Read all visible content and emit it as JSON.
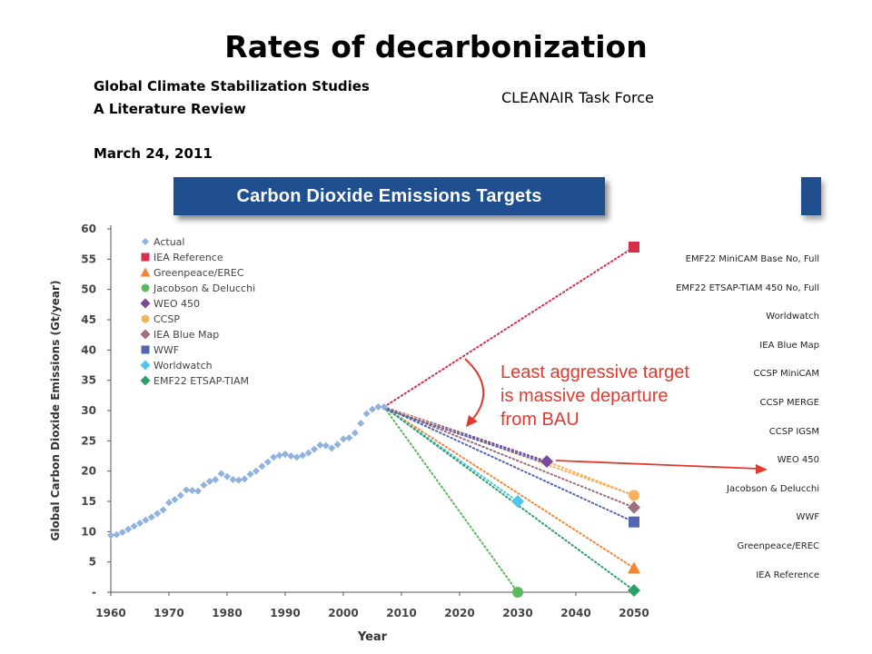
{
  "slide": {
    "title": "Rates of decarbonization",
    "ref_line1": "Global Climate Stabilization Studies",
    "ref_line2": "A Literature Review",
    "ref_date": "March 24, 2011",
    "taskforce": "CLEANAIR Task Force",
    "banner": "Carbon Dioxide Emissions Targets"
  },
  "chart_data": {
    "type": "scatter",
    "title": "Carbon Dioxide Emissions Targets",
    "xlabel": "Year",
    "ylabel": "Global Carbon Dioxide Emissions (Gt/year)",
    "xlim": [
      1960,
      2050
    ],
    "ylim": [
      0,
      60
    ],
    "x_ticks": [
      "1960",
      "1970",
      "1980",
      "1990",
      "2000",
      "2010",
      "2020",
      "2030",
      "2040",
      "2050"
    ],
    "y_ticks": [
      "-",
      "5",
      "10",
      "15",
      "20",
      "25",
      "30",
      "35",
      "40",
      "45",
      "50",
      "55",
      "60"
    ],
    "grid": false,
    "legend_position": "top-left",
    "actual": {
      "name": "Actual",
      "color": "#8fb3e0",
      "x": [
        1960,
        1961,
        1962,
        1963,
        1964,
        1965,
        1966,
        1967,
        1968,
        1969,
        1970,
        1971,
        1972,
        1973,
        1974,
        1975,
        1976,
        1977,
        1978,
        1979,
        1980,
        1981,
        1982,
        1983,
        1984,
        1985,
        1986,
        1987,
        1988,
        1989,
        1990,
        1991,
        1992,
        1993,
        1994,
        1995,
        1996,
        1997,
        1998,
        1999,
        2000,
        2001,
        2002,
        2003,
        2004,
        2005,
        2006,
        2007
      ],
      "y": [
        9.4,
        9.5,
        9.9,
        10.4,
        10.9,
        11.4,
        11.9,
        12.4,
        13.0,
        13.6,
        14.8,
        15.3,
        16.0,
        16.9,
        16.8,
        16.7,
        17.7,
        18.3,
        18.6,
        19.6,
        19.1,
        18.6,
        18.5,
        18.7,
        19.5,
        20.0,
        20.8,
        21.5,
        22.3,
        22.6,
        22.8,
        22.5,
        22.3,
        22.6,
        23.0,
        23.6,
        24.3,
        24.2,
        23.8,
        24.4,
        25.3,
        25.5,
        26.3,
        27.9,
        29.5,
        30.2,
        30.6,
        30.6
      ]
    },
    "targets": [
      {
        "name": "IEA Reference",
        "color": "#d62f4b",
        "marker": "square",
        "x": 2050,
        "y": 57
      },
      {
        "name": "Greenpeace/EREC",
        "color": "#f58535",
        "marker": "triangle",
        "x": 2050,
        "y": 4
      },
      {
        "name": "Jacobson & Delucchi",
        "color": "#5cb85c",
        "marker": "circle",
        "x": 2030,
        "y": 0
      },
      {
        "name": "WEO 450",
        "color": "#7a4a9a",
        "marker": "diamond",
        "x": 2035,
        "y": 21.6
      },
      {
        "name": "CCSP",
        "color": "#f5b060",
        "marker": "circle",
        "x": 2050,
        "y": 16
      },
      {
        "name": "IEA Blue Map",
        "color": "#9e6e7c",
        "marker": "diamond",
        "x": 2050,
        "y": 14
      },
      {
        "name": "WWF",
        "color": "#5565b0",
        "marker": "square",
        "x": 2050,
        "y": 11.6
      },
      {
        "name": "Worldwatch",
        "color": "#4fc6e8",
        "marker": "diamond",
        "x": 2030,
        "y": 15
      },
      {
        "name": "EMF22 ETSAP-TIAM",
        "color": "#2f9f6a",
        "marker": "diamond",
        "x": 2050,
        "y": 0.3
      }
    ],
    "extra_lines": [
      {
        "color": "#5565b0",
        "x": 2035,
        "y": 21.6
      }
    ],
    "origin": {
      "x": 2007,
      "y": 30.6
    },
    "annotation": {
      "lines": [
        "Least aggressive target",
        "is massive departure",
        "from BAU"
      ],
      "color": "#e03a2f"
    },
    "scenario_labels": [
      "EMF22 MiniCAM Base No, Full",
      "EMF22 ETSAP-TIAM 450 No, Full",
      "Worldwatch",
      "IEA Blue Map",
      "CCSP MiniCAM",
      "CCSP MERGE",
      "CCSP IGSM",
      "WEO 450",
      "Jacobson & Delucchi",
      "WWF",
      "Greenpeace/EREC",
      "IEA Reference"
    ]
  }
}
